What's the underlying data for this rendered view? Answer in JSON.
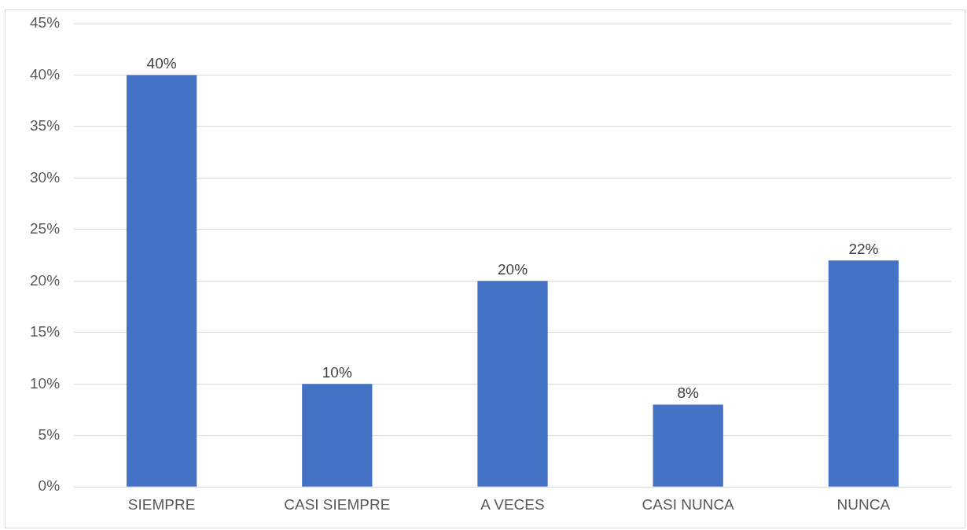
{
  "chart_data": {
    "type": "bar",
    "categories": [
      "SIEMPRE",
      "CASI SIEMPRE",
      "A VECES",
      "CASI NUNCA",
      "NUNCA"
    ],
    "values": [
      40,
      10,
      20,
      8,
      22
    ],
    "color": "#4472c4",
    "value_labels": [
      "40%",
      "10%",
      "20%",
      "8%",
      "22%"
    ],
    "ylim": [
      0,
      45
    ],
    "yticks": [
      {
        "value": 0,
        "label": "0%"
      },
      {
        "value": 5,
        "label": "5%"
      },
      {
        "value": 10,
        "label": "10%"
      },
      {
        "value": 15,
        "label": "15%"
      },
      {
        "value": 20,
        "label": "20%"
      },
      {
        "value": 25,
        "label": "25%"
      },
      {
        "value": 30,
        "label": "30%"
      },
      {
        "value": 35,
        "label": "35%"
      },
      {
        "value": 40,
        "label": "40%"
      },
      {
        "value": 45,
        "label": "45%"
      }
    ],
    "grid": "y",
    "legend": false
  }
}
